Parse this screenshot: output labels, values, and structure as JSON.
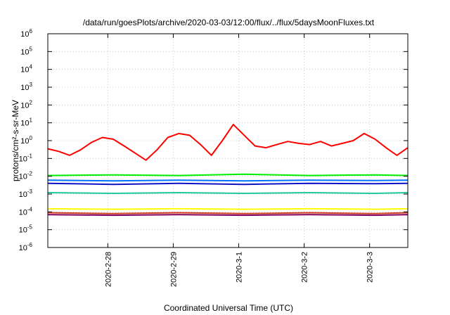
{
  "chart_data": {
    "type": "line",
    "title": "/data/run/goesPlots/archive/2020-03-03/12:00/flux/../flux/5daysMoonFluxes.txt",
    "xlabel": "Coordinated Universal Time (UTC)",
    "ylabel": "protons/cm²-s-sr-MeV",
    "y_scale": "log",
    "ylim_exp": [
      -6,
      6
    ],
    "y_ticks": [
      {
        "exp": 6,
        "label": "10"
      },
      {
        "exp": 5,
        "label": "10"
      },
      {
        "exp": 4,
        "label": "10"
      },
      {
        "exp": 3,
        "label": "10"
      },
      {
        "exp": 2,
        "label": "10"
      },
      {
        "exp": 1,
        "label": "10"
      },
      {
        "exp": 0,
        "label": "10"
      },
      {
        "exp": -1,
        "label": "10"
      },
      {
        "exp": -2,
        "label": "10"
      },
      {
        "exp": -3,
        "label": "10"
      },
      {
        "exp": -4,
        "label": "10"
      },
      {
        "exp": -5,
        "label": "10"
      },
      {
        "exp": -6,
        "label": "10"
      }
    ],
    "y_tick_exponents": [
      "6",
      "5",
      "4",
      "3",
      "2",
      "1",
      "0",
      "-1",
      "-2",
      "-3",
      "-4",
      "-5",
      "-6"
    ],
    "xlim": [
      "2020-02-27T02:00",
      "2020-03-03T14:00"
    ],
    "x_ticks": [
      {
        "date": "2020-02-28T00:00",
        "label": "2020-2-28"
      },
      {
        "date": "2020-02-29T00:00",
        "label": "2020-2-29"
      },
      {
        "date": "2020-03-01T00:00",
        "label": "2020-3-1"
      },
      {
        "date": "2020-03-02T00:00",
        "label": "2020-3-2"
      },
      {
        "date": "2020-03-03T00:00",
        "label": "2020-3-3"
      }
    ],
    "grid": true,
    "series": [
      {
        "color": "#ff0000",
        "x": [
          "2020-02-27T02:00",
          "2020-02-27T06:00",
          "2020-02-27T10:00",
          "2020-02-27T14:00",
          "2020-02-27T18:00",
          "2020-02-27T22:00",
          "2020-02-28T02:00",
          "2020-02-28T06:00",
          "2020-02-28T10:00",
          "2020-02-28T14:00",
          "2020-02-28T18:00",
          "2020-02-28T22:00",
          "2020-02-29T02:00",
          "2020-02-29T06:00",
          "2020-02-29T10:00",
          "2020-02-29T14:00",
          "2020-02-29T18:00",
          "2020-02-29T22:00",
          "2020-03-01T02:00",
          "2020-03-01T06:00",
          "2020-03-01T10:00",
          "2020-03-01T14:00",
          "2020-03-01T18:00",
          "2020-03-01T22:00",
          "2020-03-02T02:00",
          "2020-03-02T06:00",
          "2020-03-02T10:00",
          "2020-03-02T14:00",
          "2020-03-02T18:00",
          "2020-03-02T22:00",
          "2020-03-03T02:00",
          "2020-03-03T06:00",
          "2020-03-03T10:00",
          "2020-03-03T14:00"
        ],
        "y": [
          0.35,
          0.25,
          0.15,
          0.3,
          0.8,
          1.5,
          1.2,
          0.5,
          0.2,
          0.08,
          0.3,
          1.5,
          2.5,
          2.0,
          0.6,
          0.15,
          1.0,
          8.0,
          2.0,
          0.5,
          0.4,
          0.6,
          0.9,
          0.7,
          0.6,
          0.9,
          0.5,
          0.7,
          1.0,
          2.5,
          1.2,
          0.4,
          0.15,
          0.4
        ]
      },
      {
        "color": "#00ee00",
        "x": [
          "2020-02-27T02:00",
          "2020-02-28T02:00",
          "2020-02-29T02:00",
          "2020-03-01T02:00",
          "2020-03-02T02:00",
          "2020-03-03T02:00",
          "2020-03-03T14:00"
        ],
        "y": [
          0.011,
          0.012,
          0.011,
          0.013,
          0.011,
          0.012,
          0.011
        ]
      },
      {
        "color": "#1010c8",
        "x": [
          "2020-02-27T02:00",
          "2020-02-28T02:00",
          "2020-02-29T02:00",
          "2020-03-01T02:00",
          "2020-03-02T02:00",
          "2020-03-03T02:00",
          "2020-03-03T14:00"
        ],
        "y": [
          0.004,
          0.0035,
          0.004,
          0.0035,
          0.004,
          0.0038,
          0.004
        ]
      },
      {
        "color": "#0070ff",
        "x": [
          "2020-02-27T02:00",
          "2020-02-28T02:00",
          "2020-02-29T02:00",
          "2020-03-01T02:00",
          "2020-03-02T02:00",
          "2020-03-03T02:00",
          "2020-03-03T14:00"
        ],
        "y": [
          0.006,
          0.0055,
          0.006,
          0.0055,
          0.006,
          0.0058,
          0.006
        ]
      },
      {
        "color": "#20c8a0",
        "x": [
          "2020-02-27T02:00",
          "2020-02-28T02:00",
          "2020-02-29T02:00",
          "2020-03-01T02:00",
          "2020-03-02T02:00",
          "2020-03-03T02:00",
          "2020-03-03T14:00"
        ],
        "y": [
          0.0012,
          0.0011,
          0.0012,
          0.0011,
          0.0012,
          0.0011,
          0.0012
        ]
      },
      {
        "color": "#ffff00",
        "x": [
          "2020-02-27T02:00",
          "2020-02-28T02:00",
          "2020-02-29T02:00",
          "2020-03-01T02:00",
          "2020-03-02T02:00",
          "2020-03-03T02:00",
          "2020-03-03T14:00"
        ],
        "y": [
          0.00015,
          0.00014,
          0.00015,
          0.00014,
          0.00015,
          0.00014,
          0.00015
        ]
      },
      {
        "color": "#d04020",
        "x": [
          "2020-02-27T02:00",
          "2020-02-28T02:00",
          "2020-02-29T02:00",
          "2020-03-01T02:00",
          "2020-03-02T02:00",
          "2020-03-03T02:00",
          "2020-03-03T14:00"
        ],
        "y": [
          9e-05,
          8e-05,
          9e-05,
          8e-05,
          9e-05,
          8e-05,
          9e-05
        ]
      },
      {
        "color": "#800060",
        "x": [
          "2020-02-27T02:00",
          "2020-02-28T02:00",
          "2020-02-29T02:00",
          "2020-03-01T02:00",
          "2020-03-02T02:00",
          "2020-03-03T02:00",
          "2020-03-03T14:00"
        ],
        "y": [
          7e-05,
          6.5e-05,
          7e-05,
          6.5e-05,
          7e-05,
          6.5e-05,
          7e-05
        ]
      }
    ]
  }
}
